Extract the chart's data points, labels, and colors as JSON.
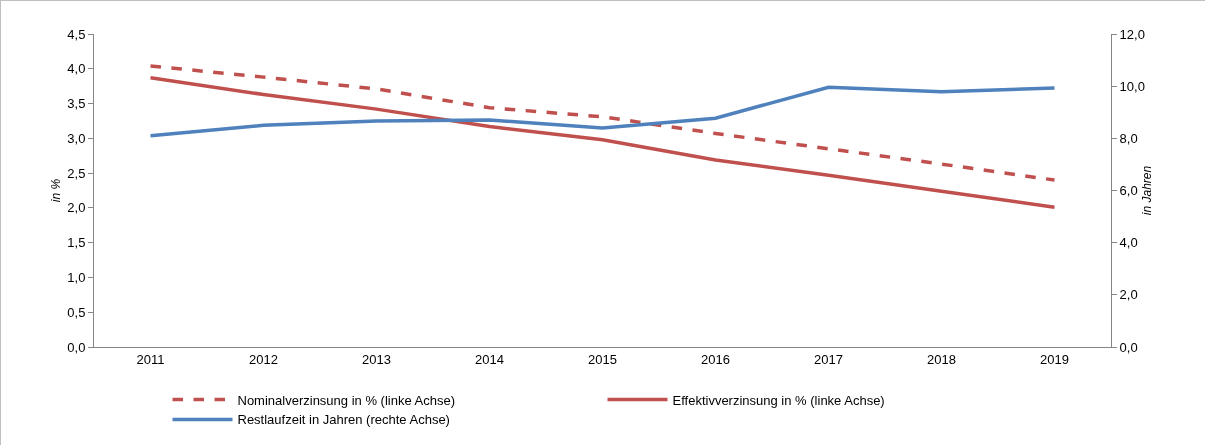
{
  "chart_data": {
    "type": "line",
    "ylabel": "in %",
    "y2label": "in Jahren",
    "categories": [
      "2011",
      "2012",
      "2013",
      "2014",
      "2015",
      "2016",
      "2017",
      "2018",
      "2019"
    ],
    "series": [
      {
        "name": "Nominalverzinsung in % (linke Achse)",
        "color": "#c0504d",
        "line_style": "dashed",
        "values": [
          4.04,
          3.88,
          3.71,
          3.44,
          3.31,
          3.07,
          2.85,
          2.63,
          2.4
        ]
      },
      {
        "name": "Effektivverzinsung in % (linke Achse)",
        "color": "#c0504d",
        "line_style": "solid",
        "values": [
          3.87,
          3.63,
          3.42,
          3.17,
          2.98,
          2.69,
          2.47,
          2.24,
          2.01
        ]
      },
      {
        "name": "Restlaufzeit in Jahren (rechte Achse)",
        "color": "#4f81bd",
        "line_style": "solid",
        "axis": "y2",
        "values": [
          8.1,
          8.5,
          8.66,
          8.7,
          8.4,
          8.77,
          9.96,
          9.79,
          9.93
        ]
      }
    ],
    "ylim": [
      0,
      4.5
    ],
    "yticks": [
      {
        "value": 0,
        "label": "0,0"
      },
      {
        "value": 0.5,
        "label": "0,5"
      },
      {
        "value": 1,
        "label": "1,0"
      },
      {
        "value": 1.5,
        "label": "1,5"
      },
      {
        "value": 2,
        "label": "2,0"
      },
      {
        "value": 2.5,
        "label": "2,5"
      },
      {
        "value": 3,
        "label": "3,0"
      },
      {
        "value": 3.5,
        "label": "3,5"
      },
      {
        "value": 4,
        "label": "4,0"
      },
      {
        "value": 4.5,
        "label": "4,5"
      }
    ],
    "y2lim": [
      0,
      12
    ],
    "y2ticks": [
      {
        "value": 0,
        "label": "0,0"
      },
      {
        "value": 2,
        "label": "2,0"
      },
      {
        "value": 4,
        "label": "4,0"
      },
      {
        "value": 6,
        "label": "6,0"
      },
      {
        "value": 8,
        "label": "8,0"
      },
      {
        "value": 10,
        "label": "10,0"
      },
      {
        "value": 12,
        "label": "12,0"
      }
    ],
    "grid": false,
    "legend": "bottom",
    "marker": "none"
  }
}
